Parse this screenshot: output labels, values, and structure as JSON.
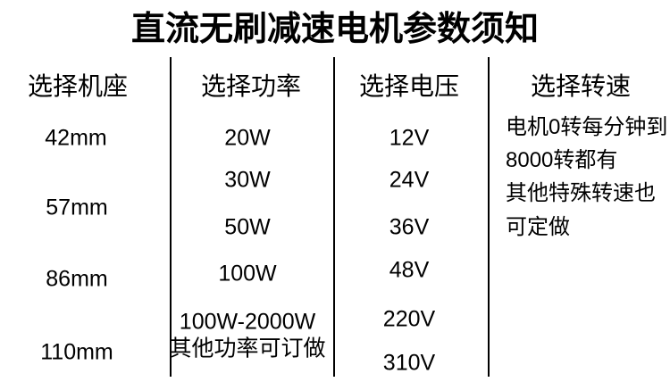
{
  "title": "直流无刷减速电机参数须知",
  "columns": [
    {
      "header": "选择机座",
      "items": [
        "42mm",
        "57mm",
        "86mm",
        "110mm"
      ]
    },
    {
      "header": "选择功率",
      "items": [
        "20W",
        "30W",
        "50W",
        "100W",
        "100W-2000W",
        "其他功率可订做"
      ]
    },
    {
      "header": "选择电压",
      "items": [
        "12V",
        "24V",
        "36V",
        "48V",
        "220V",
        "310V"
      ]
    },
    {
      "header": "选择转速",
      "lines": [
        "电机0转每分钟到",
        "8000转都有",
        "其他特殊转速也",
        "可定做"
      ]
    }
  ],
  "colors": {
    "background": "#ffffff",
    "text": "#000000",
    "divider": "#000000"
  }
}
